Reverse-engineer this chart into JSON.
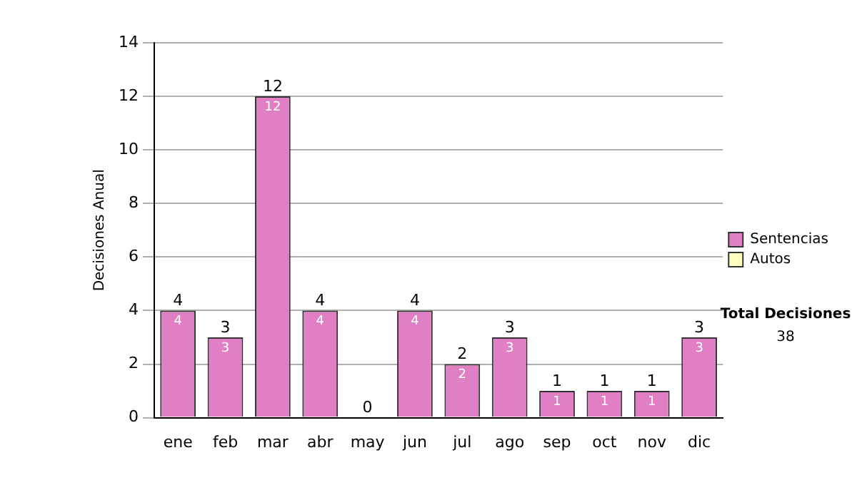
{
  "chart_data": {
    "type": "bar",
    "stacked": true,
    "ylabel": "Decisiones Anual",
    "categories": [
      "ene",
      "feb",
      "mar",
      "abr",
      "may",
      "jun",
      "jul",
      "ago",
      "sep",
      "oct",
      "nov",
      "dic"
    ],
    "series": [
      {
        "name": "Sentencias",
        "color": "#e07fc4",
        "values": [
          4,
          3,
          12,
          4,
          0,
          4,
          2,
          3,
          1,
          1,
          1,
          3
        ],
        "value_labels": [
          "4",
          "3",
          "12",
          "4",
          null,
          "4",
          "2",
          "3",
          "1",
          "1",
          "1",
          "3"
        ]
      },
      {
        "name": "Autos",
        "color": "#ffffc0",
        "values": [
          0,
          0,
          0,
          0,
          0,
          0,
          0,
          0,
          0,
          0,
          0,
          0
        ]
      }
    ],
    "totals": [
      "4",
      "3",
      "12",
      "4",
      "0",
      "4",
      "2",
      "3",
      "1",
      "1",
      "1",
      "3"
    ],
    "ylim": [
      0,
      14
    ],
    "yticks": [
      0,
      2,
      4,
      6,
      8,
      10,
      12,
      14
    ],
    "grid": "y",
    "legend": "right",
    "annotations": [
      "Total Decisiones",
      "38"
    ]
  }
}
